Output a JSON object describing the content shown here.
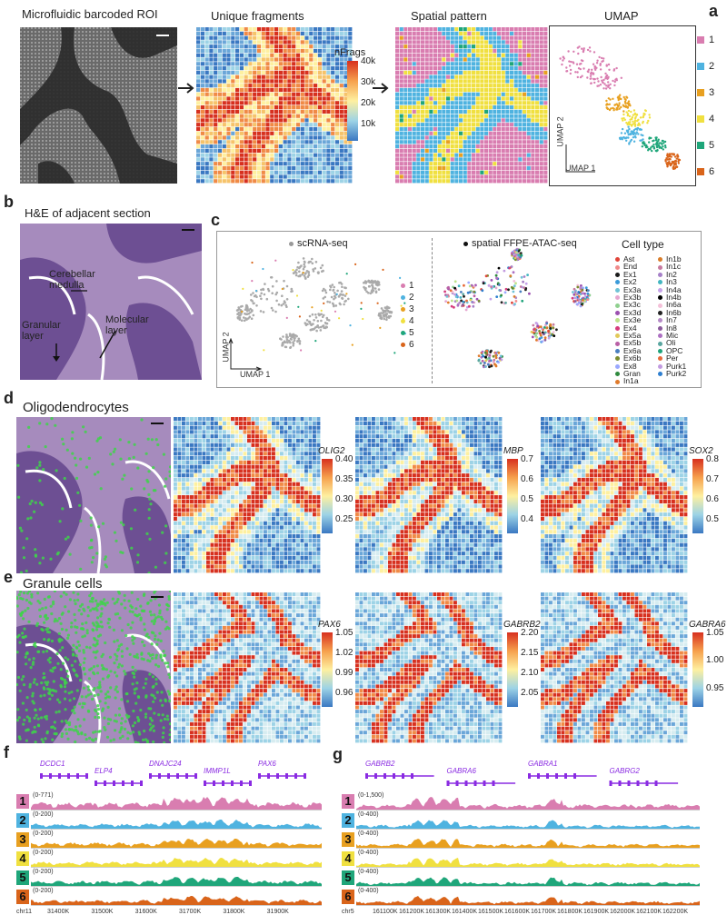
{
  "panel_labels": {
    "a": "a",
    "b": "b",
    "c": "c",
    "d": "d",
    "e": "e",
    "f": "f",
    "g": "g"
  },
  "panel_a": {
    "titles": [
      "Microfluidic barcoded ROI",
      "Unique fragments",
      "Spatial pattern",
      "UMAP"
    ],
    "colorbar": {
      "title": "nFrags",
      "ticks": [
        "40k",
        "30k",
        "20k",
        "10k"
      ]
    },
    "umap_axes": {
      "x": "UMAP 1",
      "y": "UMAP 2"
    },
    "legend": [
      {
        "label": "1",
        "color": "#d97db0"
      },
      {
        "label": "2",
        "color": "#4fb3e0"
      },
      {
        "label": "3",
        "color": "#e8a020"
      },
      {
        "label": "4",
        "color": "#f0e040"
      },
      {
        "label": "5",
        "color": "#1fa67a"
      },
      {
        "label": "6",
        "color": "#d9641a"
      }
    ]
  },
  "panel_b": {
    "title": "H&E of adjacent section",
    "annotations": [
      "Cerebellar medulla",
      "Granular layer",
      "Molecular layer"
    ]
  },
  "panel_c": {
    "left_title": "scRNA-seq",
    "right_title": "spatial FFPE-ATAC-seq",
    "axes": {
      "x": "UMAP 1",
      "y": "UMAP 2"
    },
    "cluster_legend": [
      "1",
      "2",
      "3",
      "4",
      "5",
      "6"
    ],
    "celltype_title": "Cell type",
    "celltypes_col1": [
      "Ast",
      "End",
      "Ex1",
      "Ex2",
      "Ex3a",
      "Ex3b",
      "Ex3c",
      "Ex3d",
      "Ex3e",
      "Ex4",
      "Ex5a",
      "Ex5b",
      "Ex6a",
      "Ex6b",
      "Ex8",
      "Gran",
      "In1a"
    ],
    "celltypes_col2": [
      "In1b",
      "In1c",
      "In2",
      "In3",
      "In4a",
      "In4b",
      "In6a",
      "In6b",
      "In7",
      "In8",
      "Mic",
      "Oli",
      "OPC",
      "Per",
      "Purk1",
      "Purk2"
    ],
    "celltype_colors": [
      "#e0453a",
      "#f08a8a",
      "#1a1a1a",
      "#3a9ad9",
      "#6fc3d6",
      "#e6a7d0",
      "#8fd08f",
      "#9b4fb0",
      "#bde38a",
      "#d63c7c",
      "#e2c95a",
      "#b95fa5",
      "#4a7fbf",
      "#7a8c2e",
      "#9aa8ff",
      "#2f8a3e",
      "#e07b2b",
      "#d97d2a",
      "#c77aa0",
      "#a680c8",
      "#42b6c0",
      "#c5a2e8",
      "#000000",
      "#f4c0d8",
      "#222222",
      "#b58ac7",
      "#8b5a9b",
      "#ad70c2",
      "#5aa6a0",
      "#1ea37a",
      "#e86a3a",
      "#c29be0",
      "#2e7fd0"
    ]
  },
  "panel_d": {
    "title": "Oligodendrocytes",
    "genes": [
      {
        "name": "OLIG2",
        "ticks": [
          "0.40",
          "0.35",
          "0.30",
          "0.25"
        ]
      },
      {
        "name": "MBP",
        "ticks": [
          "0.7",
          "0.6",
          "0.5",
          "0.4"
        ]
      },
      {
        "name": "SOX2",
        "ticks": [
          "0.8",
          "0.7",
          "0.6",
          "0.5"
        ]
      }
    ]
  },
  "panel_e": {
    "title": "Granule cells",
    "genes": [
      {
        "name": "PAX6",
        "ticks": [
          "1.05",
          "1.02",
          "0.99",
          "0.96"
        ]
      },
      {
        "name": "GABRB2",
        "ticks": [
          "2.20",
          "2.15",
          "2.10",
          "2.05"
        ]
      },
      {
        "name": "GABRA6",
        "ticks": [
          "1.05",
          "1.00",
          "0.95"
        ]
      }
    ]
  },
  "panel_f": {
    "genes": [
      "DCDC1",
      "ELP4",
      "DNAJC24",
      "IMMP1L",
      "PAX6"
    ],
    "tracks": [
      {
        "label": "1",
        "range": "(0-771)",
        "color": "#d97db0"
      },
      {
        "label": "2",
        "range": "(0-200)",
        "color": "#4fb3e0"
      },
      {
        "label": "3",
        "range": "(0-200)",
        "color": "#e8a020"
      },
      {
        "label": "4",
        "range": "(0-200)",
        "color": "#f0e040"
      },
      {
        "label": "5",
        "range": "(0-200)",
        "color": "#1fa67a"
      },
      {
        "label": "6",
        "range": "(0-200)",
        "color": "#d9641a"
      }
    ],
    "chrom": "chr11",
    "ticks": [
      "31400K",
      "31500K",
      "31600K",
      "31700K",
      "31800K",
      "31900K"
    ]
  },
  "panel_g": {
    "genes": [
      "GABRB2",
      "GABRA6",
      "GABRA1",
      "GABRG2"
    ],
    "tracks": [
      {
        "label": "1",
        "range": "(0-1,500)",
        "color": "#d97db0"
      },
      {
        "label": "2",
        "range": "(0-400)",
        "color": "#4fb3e0"
      },
      {
        "label": "3",
        "range": "(0-400)",
        "color": "#e8a020"
      },
      {
        "label": "4",
        "range": "(0-400)",
        "color": "#f0e040"
      },
      {
        "label": "5",
        "range": "(0-400)",
        "color": "#1fa67a"
      },
      {
        "label": "6",
        "range": "(0-400)",
        "color": "#d9641a"
      }
    ],
    "chrom": "chr5",
    "ticks": [
      "161100K",
      "161200K",
      "161300K",
      "161400K",
      "161500K",
      "161600K",
      "161700K",
      "161800K",
      "161900K",
      "162000K",
      "162100K",
      "162200K"
    ]
  }
}
